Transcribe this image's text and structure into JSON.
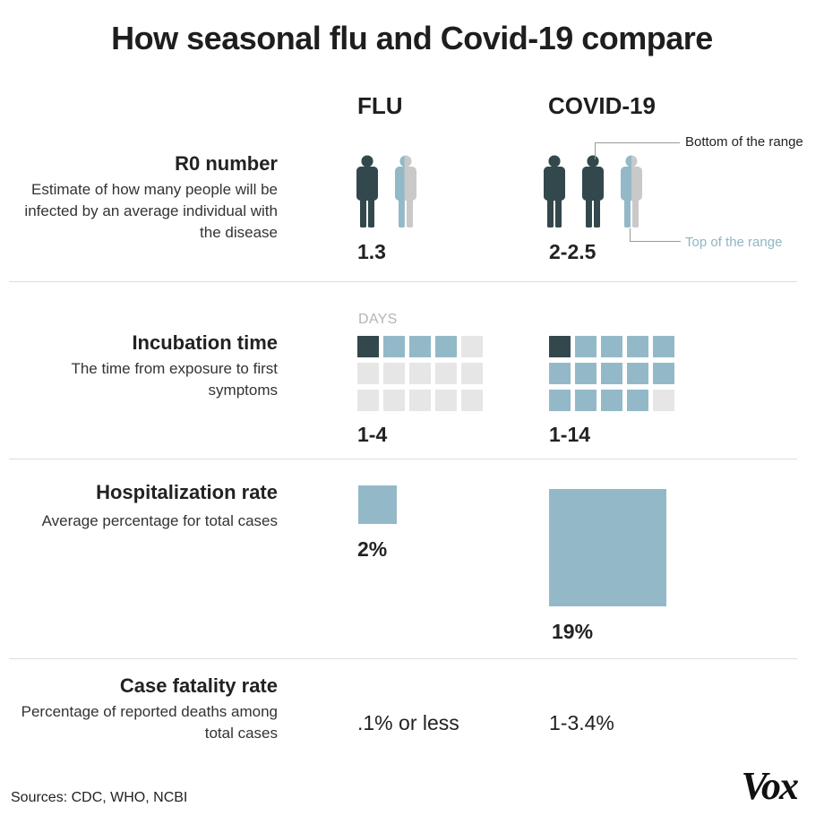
{
  "title": "How seasonal flu and Covid-19 compare",
  "columns": {
    "flu": "FLU",
    "covid": "COVID-19"
  },
  "colors": {
    "dark": "#33484c",
    "blue": "#93b9c8",
    "empty": "#e6e6e6",
    "gray_person": "#c9c9c9"
  },
  "rows": {
    "r0": {
      "title": "R0 number",
      "description": "Estimate of how many people will be infected by an average individual with the disease",
      "flu_value": "1.3",
      "covid_value": "2-2.5",
      "annotation_bottom": "Bottom of the range",
      "annotation_top": "Top of the range"
    },
    "incubation": {
      "title": "Incubation time",
      "description": "The time from exposure to first symptoms",
      "days_label": "DAYS",
      "flu_value": "1-4",
      "covid_value": "1-14"
    },
    "hospitalization": {
      "title": "Hospitalization rate",
      "description": "Average percentage for total cases",
      "flu_value": "2%",
      "covid_value": "19%"
    },
    "fatality": {
      "title": "Case fatality rate",
      "description": "Percentage of reported deaths among total cases",
      "flu_value": ".1% or less",
      "covid_value": "1-3.4%"
    }
  },
  "chart_data": {
    "type": "table",
    "series": [
      {
        "name": "FLU",
        "r0_min": 1.3,
        "r0_max": 1.3,
        "incubation_days_min": 1,
        "incubation_days_max": 4,
        "hospitalization_pct": 2,
        "fatality": ".1% or less"
      },
      {
        "name": "COVID-19",
        "r0_min": 2,
        "r0_max": 2.5,
        "incubation_days_min": 1,
        "incubation_days_max": 14,
        "hospitalization_pct": 19,
        "fatality": "1-3.4%"
      }
    ],
    "incubation_grid_cells": 15
  },
  "sources": "Sources: CDC, WHO,  NCBI",
  "brand": "Vox"
}
